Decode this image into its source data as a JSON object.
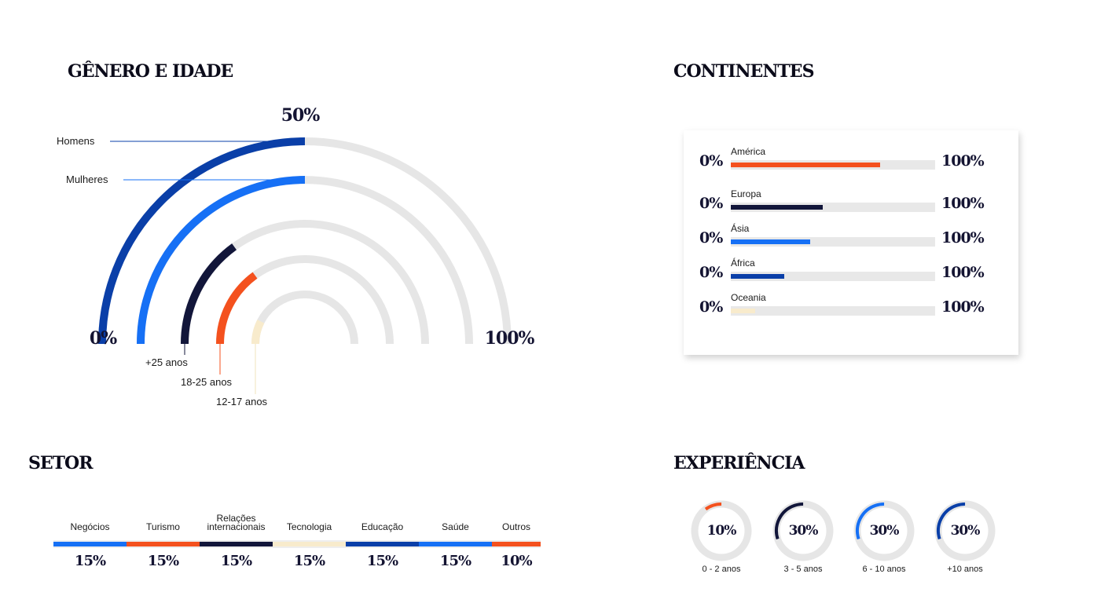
{
  "colors": {
    "dark_navy": "#12163a",
    "royal_blue": "#0a3fa8",
    "bright_blue": "#1670f5",
    "orange": "#f4511e",
    "cream": "#fbf1d9",
    "track": "#e6e6e6"
  },
  "genero": {
    "title": "GÊNERO E IDADE",
    "mid_label": "50%",
    "min_label": "0%",
    "max_label": "100%"
  },
  "continentes": {
    "title": "CONTINENTES"
  },
  "setor": {
    "title": "SETOR"
  },
  "experiencia": {
    "title": "EXPERIÊNCIA"
  },
  "chart_data": [
    {
      "type": "radial_bar",
      "title": "GÊNERO E IDADE",
      "scale": {
        "min": 0,
        "max": 100,
        "min_label": "0%",
        "mid_label": "50%",
        "max_label": "100%"
      },
      "series": [
        {
          "name": "Homens",
          "value": 50,
          "color": "#0a3fa8"
        },
        {
          "name": "Mulheres",
          "value": 50,
          "color": "#1670f5"
        },
        {
          "name": "+25 anos",
          "value": 30,
          "color": "#12163a"
        },
        {
          "name": "18-25 anos",
          "value": 30,
          "color": "#f4511e"
        },
        {
          "name": "12-17 anos",
          "value": 15,
          "color": "#fbf1d9"
        }
      ]
    },
    {
      "type": "bar",
      "title": "CONTINENTES",
      "min_label": "0%",
      "max_label": "100%",
      "categories": [
        "América",
        "Europa",
        "Ásia",
        "África",
        "Oceania"
      ],
      "values": [
        73,
        45,
        39,
        26,
        12
      ],
      "colors": [
        "#f4511e",
        "#12163a",
        "#1670f5",
        "#0a3fa8",
        "#fbf1d9"
      ],
      "ylim": [
        0,
        100
      ]
    },
    {
      "type": "bar",
      "title": "SETOR",
      "categories": [
        "Negócios",
        "Turismo",
        "Relações internacionais",
        "Tecnologia",
        "Educação",
        "Saúde",
        "Outros"
      ],
      "values": [
        15,
        15,
        15,
        15,
        15,
        15,
        10
      ],
      "value_labels": [
        "15%",
        "15%",
        "15%",
        "15%",
        "15%",
        "15%",
        "10%"
      ],
      "colors": [
        "#1670f5",
        "#f4511e",
        "#12163a",
        "#fbf1d9",
        "#0a3fa8",
        "#1670f5",
        "#f4511e"
      ]
    },
    {
      "type": "pie",
      "title": "EXPERIÊNCIA",
      "categories": [
        "0 - 2 anos",
        "3 - 5 anos",
        "6 - 10 anos",
        "+10 anos"
      ],
      "values": [
        10,
        30,
        30,
        30
      ],
      "value_labels": [
        "10%",
        "30%",
        "30%",
        "30%"
      ],
      "colors": [
        "#f4511e",
        "#12163a",
        "#1670f5",
        "#0a3fa8"
      ]
    }
  ]
}
